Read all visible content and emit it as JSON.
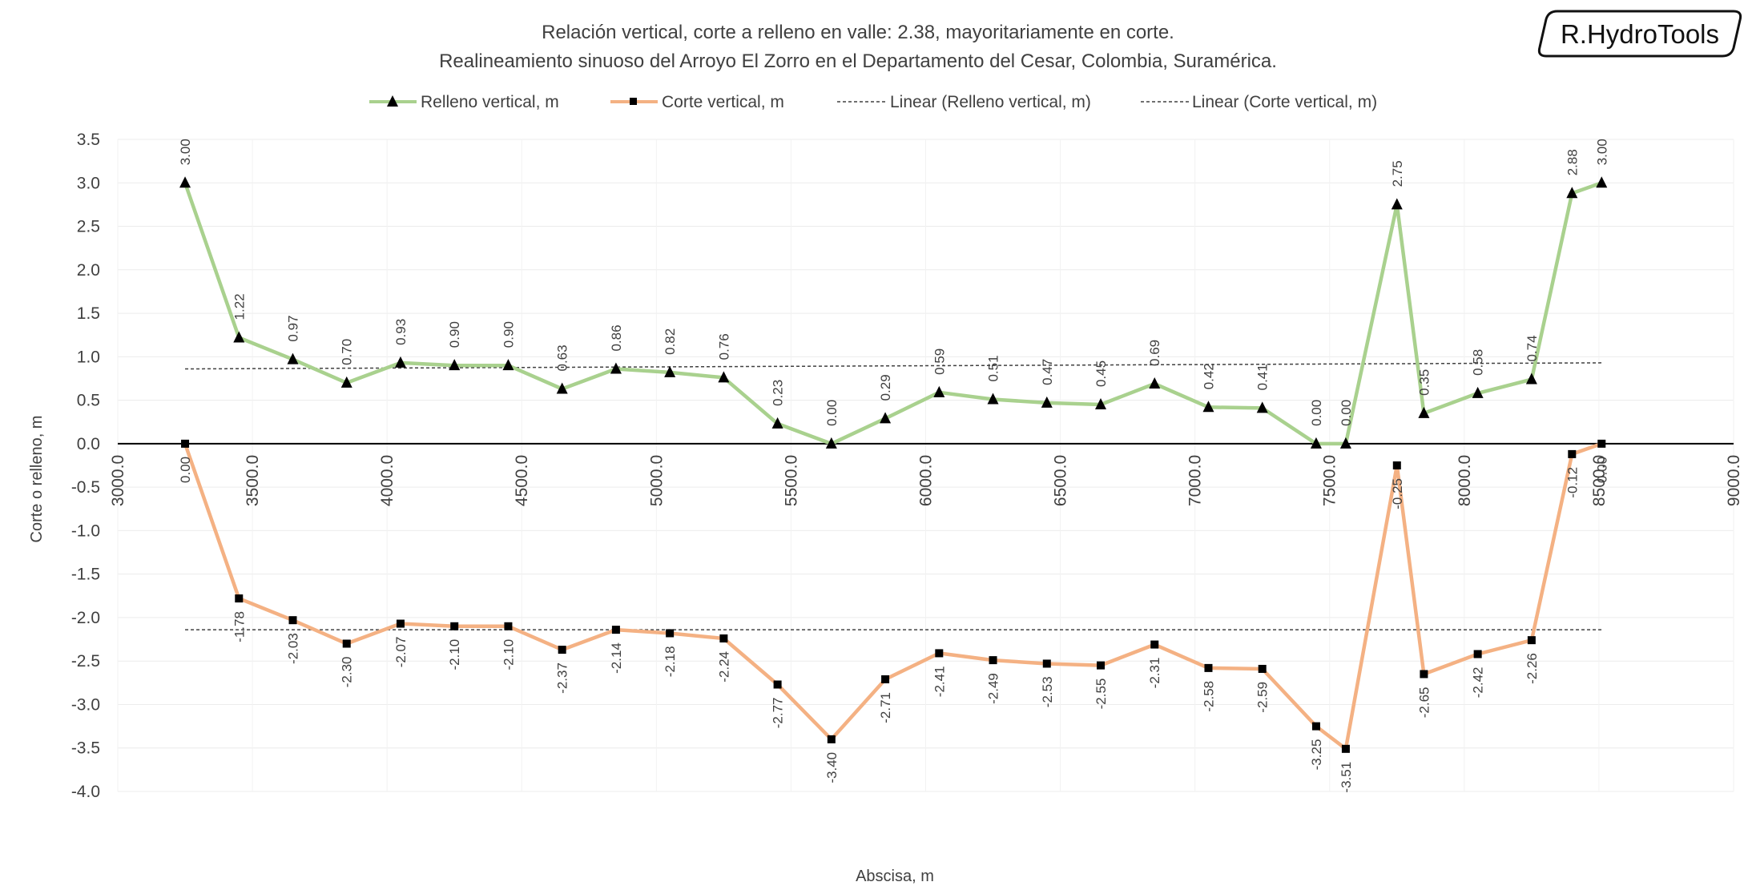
{
  "chart_data": {
    "type": "line",
    "title": "Relación vertical, corte a relleno en valle: 2.38, mayoritariamente en corte.",
    "subtitle": "Realineamiento sinuoso del Arroyo El Zorro en el Departamento del Cesar, Colombia, Suramérica.",
    "xlabel": "Abscisa, m",
    "ylabel": "Corte o relleno, m",
    "xlim": [
      3000,
      9000
    ],
    "ylim": [
      -4.0,
      3.5
    ],
    "x_ticks": [
      3000,
      3500,
      4000,
      4500,
      5000,
      5500,
      6000,
      6500,
      7000,
      7500,
      8000,
      8500,
      9000
    ],
    "x_tick_labels": [
      "3000.0",
      "3500.0",
      "4000.0",
      "4500.0",
      "5000.0",
      "5500.0",
      "6000.0",
      "6500.0",
      "7000.0",
      "7500.0",
      "8000.0",
      "8500.0",
      "9000.0"
    ],
    "y_ticks": [
      3.5,
      3.0,
      2.5,
      2.0,
      1.5,
      1.0,
      0.5,
      0.0,
      -0.5,
      -1.0,
      -1.5,
      -2.0,
      -2.5,
      -3.0,
      -3.5,
      -4.0
    ],
    "y_tick_labels": [
      "3.5",
      "3.0",
      "2.5",
      "2.0",
      "1.5",
      "1.0",
      "0.5",
      "0.0",
      "-0.5",
      "-1.0",
      "-1.5",
      "-2.0",
      "-2.5",
      "-3.0",
      "-3.5",
      "-4.0"
    ],
    "grid": true,
    "legend_position": "top",
    "x": [
      3250,
      3450,
      3650,
      3850,
      4050,
      4250,
      4450,
      4650,
      4850,
      5050,
      5250,
      5450,
      5650,
      5850,
      6050,
      6250,
      6450,
      6650,
      6850,
      7050,
      7250,
      7450,
      7560,
      7750,
      7850,
      8050,
      8250,
      8400,
      8510
    ],
    "series": [
      {
        "name": "Relleno vertical, m",
        "marker": "triangle",
        "color": "#a9d18e",
        "values": [
          3.0,
          1.22,
          0.97,
          0.7,
          0.93,
          0.9,
          0.9,
          0.63,
          0.86,
          0.82,
          0.76,
          0.23,
          0.0,
          0.29,
          0.59,
          0.51,
          0.47,
          0.45,
          0.69,
          0.42,
          0.41,
          0.0,
          0.0,
          2.75,
          0.35,
          0.58,
          0.74,
          2.88,
          3.0
        ],
        "labels": [
          "3.00",
          "1.22",
          "0.97",
          "0.70",
          "0.93",
          "0.90",
          "0.90",
          "0.63",
          "0.86",
          "0.82",
          "0.76",
          "0.23",
          "0.00",
          "0.29",
          "0.59",
          "0.51",
          "0.47",
          "0.45",
          "0.69",
          "0.42",
          "0.41",
          "0.00",
          "0.00",
          "2.75",
          "0.35",
          "0.58",
          "0.74",
          "2.88",
          "3.00"
        ]
      },
      {
        "name": "Corte vertical, m",
        "marker": "square",
        "color": "#f4b183",
        "values": [
          0.0,
          -1.78,
          -2.03,
          -2.3,
          -2.07,
          -2.1,
          -2.1,
          -2.37,
          -2.14,
          -2.18,
          -2.24,
          -2.77,
          -3.4,
          -2.71,
          -2.41,
          -2.49,
          -2.53,
          -2.55,
          -2.31,
          -2.58,
          -2.59,
          -3.25,
          -3.51,
          -0.25,
          -2.65,
          -2.42,
          -2.26,
          -0.12,
          0.0
        ],
        "labels": [
          "0.00",
          "-1.78",
          "-2.03",
          "-2.30",
          "-2.07",
          "-2.10",
          "-2.10",
          "-2.37",
          "-2.14",
          "-2.18",
          "-2.24",
          "-2.77",
          "-3.40",
          "-2.71",
          "-2.41",
          "-2.49",
          "-2.53",
          "-2.55",
          "-2.31",
          "-2.58",
          "-2.59",
          "-3.25",
          "-3.51",
          "-0.25",
          "-2.65",
          "-2.42",
          "-2.26",
          "-0.12",
          "0.00"
        ]
      }
    ],
    "trendlines": [
      {
        "name": "Linear (Relleno vertical, m)",
        "style": "dashed",
        "color": "#404040",
        "values": [
          0.86,
          0.93
        ]
      },
      {
        "name": "Linear (Corte vertical, m)",
        "style": "dashed",
        "color": "#404040",
        "values": [
          -2.14,
          -2.14
        ]
      }
    ]
  },
  "brand": {
    "text": "R.HydroTools"
  }
}
